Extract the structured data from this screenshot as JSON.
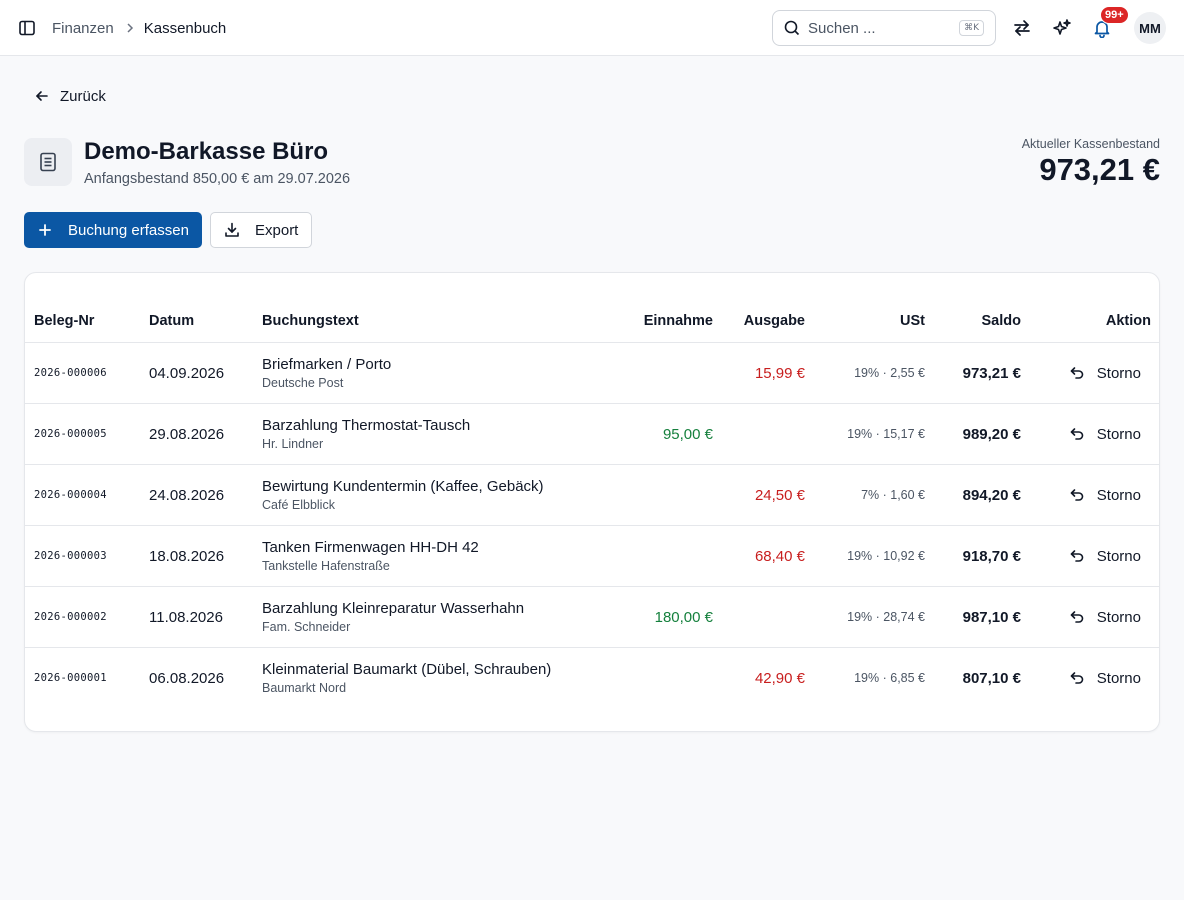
{
  "breadcrumb": {
    "parent": "Finanzen",
    "current": "Kassenbuch"
  },
  "search": {
    "placeholder": "Suchen ...",
    "shortcut": "⌘K"
  },
  "notifications": {
    "badge": "99+"
  },
  "user": {
    "initials": "MM"
  },
  "back": {
    "label": "Zurück"
  },
  "register": {
    "title": "Demo-Barkasse Büro",
    "subtitle": "Anfangsbestand 850,00 € am 29.07.2026",
    "balance_label": "Aktueller Kassenbestand",
    "balance_value": "973,21 €"
  },
  "actions": {
    "add_label": "Buchung erfassen",
    "export_label": "Export"
  },
  "table": {
    "headers": {
      "beleg": "Beleg-Nr",
      "datum": "Datum",
      "text": "Buchungstext",
      "einnahme": "Einnahme",
      "ausgabe": "Ausgabe",
      "ust": "USt",
      "saldo": "Saldo",
      "aktion": "Aktion"
    },
    "rows": [
      {
        "beleg": "2026-000006",
        "datum": "04.09.2026",
        "text": "Briefmarken / Porto",
        "sub": "Deutsche Post",
        "einnahme": "",
        "ausgabe": "15,99 €",
        "ust": "19% · 2,55 €",
        "saldo": "973,21 €",
        "aktion": "Storno"
      },
      {
        "beleg": "2026-000005",
        "datum": "29.08.2026",
        "text": "Barzahlung Thermostat-Tausch",
        "sub": "Hr. Lindner",
        "einnahme": "95,00 €",
        "ausgabe": "",
        "ust": "19% · 15,17 €",
        "saldo": "989,20 €",
        "aktion": "Storno"
      },
      {
        "beleg": "2026-000004",
        "datum": "24.08.2026",
        "text": "Bewirtung Kundentermin (Kaffee, Gebäck)",
        "sub": "Café Elbblick",
        "einnahme": "",
        "ausgabe": "24,50 €",
        "ust": "7% · 1,60 €",
        "saldo": "894,20 €",
        "aktion": "Storno"
      },
      {
        "beleg": "2026-000003",
        "datum": "18.08.2026",
        "text": "Tanken Firmenwagen HH-DH 42",
        "sub": "Tankstelle Hafenstraße",
        "einnahme": "",
        "ausgabe": "68,40 €",
        "ust": "19% · 10,92 €",
        "saldo": "918,70 €",
        "aktion": "Storno"
      },
      {
        "beleg": "2026-000002",
        "datum": "11.08.2026",
        "text": "Barzahlung Kleinreparatur Wasserhahn",
        "sub": "Fam. Schneider",
        "einnahme": "180,00 €",
        "ausgabe": "",
        "ust": "19% · 28,74 €",
        "saldo": "987,10 €",
        "aktion": "Storno"
      },
      {
        "beleg": "2026-000001",
        "datum": "06.08.2026",
        "text": "Kleinmaterial Baumarkt (Dübel, Schrauben)",
        "sub": "Baumarkt Nord",
        "einnahme": "",
        "ausgabe": "42,90 €",
        "ust": "19% · 6,85 €",
        "saldo": "807,10 €",
        "aktion": "Storno"
      }
    ]
  },
  "colors": {
    "primary": "#0b57a4",
    "income": "#15803d",
    "expense": "#c81e1e",
    "badge": "#dc2626"
  },
  "icons": [
    "sidebar-toggle-icon",
    "chevron-right-icon",
    "search-icon",
    "transfer-icon",
    "sparkles-icon",
    "bell-icon",
    "arrow-left-icon",
    "book-icon",
    "plus-icon",
    "download-icon",
    "undo-icon"
  ]
}
